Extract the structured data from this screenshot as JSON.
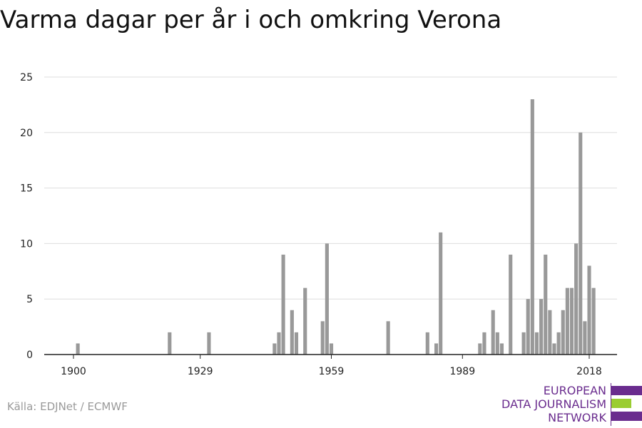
{
  "chart_data": {
    "type": "bar",
    "title": "Varma dagar per år i och omkring Verona",
    "xlabel": "",
    "ylabel": "",
    "xlim": [
      1900,
      2018
    ],
    "ylim": [
      0,
      25
    ],
    "yticks": [
      0,
      5,
      10,
      15,
      20,
      25
    ],
    "xticks": [
      1900,
      1929,
      1959,
      1989,
      2018
    ],
    "grid": true,
    "bar_color": "#999999",
    "x": [
      1901,
      1922,
      1931,
      1946,
      1947,
      1948,
      1950,
      1951,
      1953,
      1957,
      1958,
      1959,
      1972,
      1981,
      1983,
      1984,
      1993,
      1994,
      1996,
      1997,
      1998,
      2000,
      2003,
      2004,
      2005,
      2006,
      2007,
      2008,
      2009,
      2010,
      2011,
      2012,
      2013,
      2014,
      2015,
      2016,
      2017,
      2018,
      2019
    ],
    "values": [
      1,
      2,
      2,
      1,
      2,
      9,
      4,
      2,
      6,
      3,
      10,
      1,
      3,
      2,
      1,
      11,
      1,
      2,
      4,
      2,
      1,
      9,
      2,
      5,
      23,
      2,
      5,
      9,
      4,
      1,
      2,
      4,
      6,
      6,
      10,
      20,
      3,
      8,
      6
    ]
  },
  "source": "Källa: EDJNet / ECMWF",
  "logo": {
    "lines": [
      "EUROPEAN",
      "DATA JOURNALISM",
      "NETWORK"
    ],
    "colors": {
      "purple": "#6a2c8e",
      "green": "#9acd32"
    }
  }
}
